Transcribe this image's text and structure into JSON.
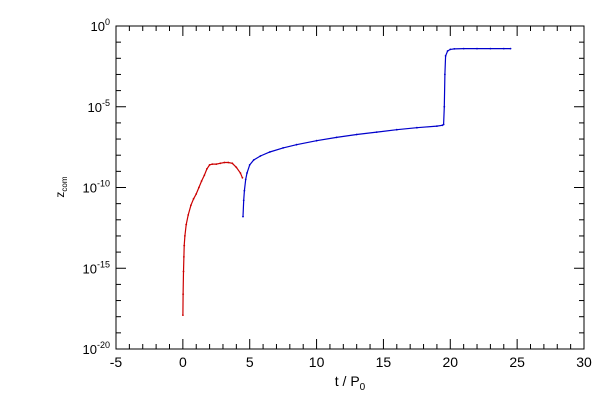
{
  "chart_data": {
    "type": "scatter",
    "xlabel": {
      "main": "t / P",
      "sub": "0"
    },
    "ylabel": {
      "main": "z",
      "sub": "com"
    },
    "xlim": [
      -5,
      30
    ],
    "ylim_log10": [
      -20,
      0
    ],
    "yscale": "log",
    "x_ticks": [
      "-5",
      "0",
      "5",
      "10",
      "15",
      "20",
      "25",
      "30"
    ],
    "y_ticks": [
      {
        "base": "10",
        "exp": "0"
      },
      {
        "base": "10",
        "exp": "-5"
      },
      {
        "base": "10",
        "exp": "-10"
      },
      {
        "base": "10",
        "exp": "-15"
      },
      {
        "base": "10",
        "exp": "-20"
      }
    ],
    "series": [
      {
        "color": "#cc0000",
        "points": [
          [
            0.0,
            -17.9
          ],
          [
            0.02,
            -16.6
          ],
          [
            0.05,
            -15.2
          ],
          [
            0.08,
            -14.3
          ],
          [
            0.1,
            -13.6
          ],
          [
            0.15,
            -13.0
          ],
          [
            0.25,
            -12.3
          ],
          [
            0.4,
            -11.7
          ],
          [
            0.6,
            -11.1
          ],
          [
            0.8,
            -10.7
          ],
          [
            1.0,
            -10.4
          ],
          [
            1.2,
            -10.0
          ],
          [
            1.4,
            -9.6
          ],
          [
            1.6,
            -9.25
          ],
          [
            1.8,
            -8.85
          ],
          [
            2.0,
            -8.6
          ],
          [
            2.2,
            -8.55
          ],
          [
            2.5,
            -8.55
          ],
          [
            2.8,
            -8.5
          ],
          [
            3.1,
            -8.45
          ],
          [
            3.4,
            -8.45
          ],
          [
            3.7,
            -8.5
          ],
          [
            4.0,
            -8.75
          ],
          [
            4.3,
            -9.1
          ],
          [
            4.45,
            -9.4
          ]
        ]
      },
      {
        "color": "#0000cc",
        "points": [
          [
            4.5,
            -11.8
          ],
          [
            4.55,
            -10.8
          ],
          [
            4.6,
            -10.2
          ],
          [
            4.7,
            -9.5
          ],
          [
            4.8,
            -9.1
          ],
          [
            5.0,
            -8.6
          ],
          [
            5.3,
            -8.3
          ],
          [
            5.8,
            -8.05
          ],
          [
            6.5,
            -7.8
          ],
          [
            7.5,
            -7.55
          ],
          [
            8.5,
            -7.35
          ],
          [
            10.0,
            -7.1
          ],
          [
            11.5,
            -6.9
          ],
          [
            13.0,
            -6.72
          ],
          [
            14.5,
            -6.57
          ],
          [
            16.0,
            -6.42
          ],
          [
            17.5,
            -6.3
          ],
          [
            19.0,
            -6.2
          ],
          [
            19.4,
            -6.15
          ],
          [
            19.5,
            -6.1
          ],
          [
            19.55,
            -5.0
          ],
          [
            19.6,
            -3.0
          ],
          [
            19.65,
            -1.85
          ],
          [
            19.8,
            -1.55
          ],
          [
            20.0,
            -1.45
          ],
          [
            20.3,
            -1.42
          ],
          [
            21.0,
            -1.4
          ],
          [
            22.0,
            -1.4
          ],
          [
            23.0,
            -1.4
          ],
          [
            24.0,
            -1.4
          ],
          [
            24.5,
            -1.4
          ]
        ]
      }
    ]
  }
}
